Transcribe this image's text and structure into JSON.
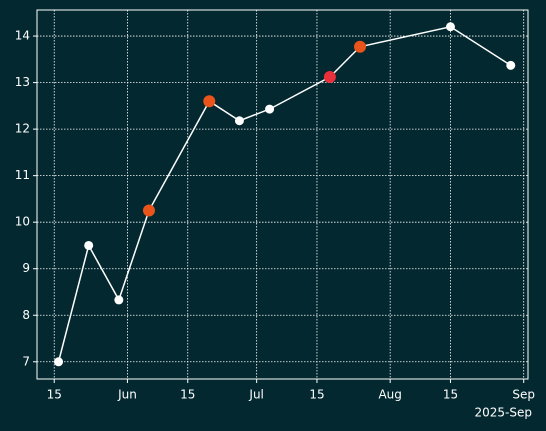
{
  "chart_data": {
    "type": "line",
    "x": [
      "2025-05-16",
      "2025-05-23",
      "2025-05-30",
      "2025-06-06",
      "2025-06-20",
      "2025-06-27",
      "2025-07-04",
      "2025-07-18",
      "2025-07-25",
      "2025-08-15",
      "2025-08-29"
    ],
    "y": [
      7.0,
      9.5,
      8.33,
      10.25,
      12.6,
      12.18,
      12.43,
      13.12,
      13.77,
      14.2,
      13.37
    ],
    "color": "#ffffff",
    "point_colors": [
      "#ffffff",
      "#ffffff",
      "#ffffff",
      "#e8541a",
      "#e8541a",
      "#ffffff",
      "#ffffff",
      "#e8303a",
      "#e8541a",
      "#ffffff",
      "#ffffff"
    ],
    "xlim": [
      "2025-05-11",
      "2025-09-02"
    ],
    "ylim": [
      6.63,
      14.56
    ],
    "yticks": [
      7,
      8,
      9,
      10,
      11,
      12,
      13,
      14
    ],
    "xticks": [
      {
        "value": "2025-05-15",
        "label": "15"
      },
      {
        "value": "2025-06-01",
        "label": "Jun"
      },
      {
        "value": "2025-06-15",
        "label": "15"
      },
      {
        "value": "2025-07-01",
        "label": "Jul"
      },
      {
        "value": "2025-07-15",
        "label": "15"
      },
      {
        "value": "2025-08-01",
        "label": "Aug"
      },
      {
        "value": "2025-08-15",
        "label": "15"
      },
      {
        "value": "2025-09-01",
        "label": "Sep"
      }
    ],
    "x_offset_label": "2025-Sep",
    "grid": true,
    "background": "#03282f"
  }
}
